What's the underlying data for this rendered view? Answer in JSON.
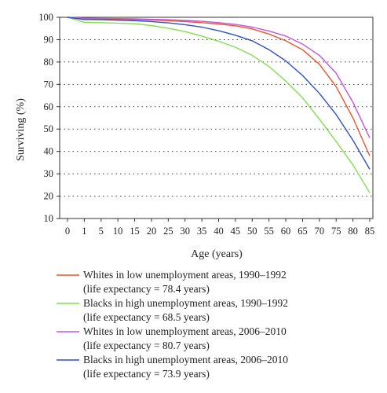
{
  "chart_data": {
    "type": "line",
    "ylabel": "Surviving (%)",
    "xlabel": "Age (years)",
    "xticks": [
      "0",
      "1",
      "5",
      "10",
      "15",
      "20",
      "25",
      "30",
      "35",
      "40",
      "45",
      "50",
      "55",
      "60",
      "65",
      "70",
      "75",
      "80",
      "85"
    ],
    "yticks": [
      10,
      20,
      30,
      40,
      50,
      60,
      70,
      80,
      90,
      100
    ],
    "ylim": [
      10,
      100
    ],
    "grid": "horizontal dotted",
    "legend_position": "bottom",
    "series": [
      {
        "name": "Whites in low unemployment areas, 1990–1992",
        "sub": "(life expectancy = 78.4 years)",
        "color": "#e8572b",
        "x": [
          0,
          1,
          5,
          10,
          15,
          20,
          25,
          30,
          35,
          40,
          45,
          50,
          55,
          60,
          65,
          70,
          75,
          80,
          85
        ],
        "values": [
          100,
          99.3,
          99.2,
          99.1,
          99.0,
          98.8,
          98.5,
          98.1,
          97.6,
          97.0,
          96.2,
          94.8,
          92.5,
          89.5,
          85.5,
          79.0,
          69.0,
          55.0,
          38.0
        ]
      },
      {
        "name": "Blacks in high unemployment areas, 1990–1992",
        "sub": "(life expectancy = 68.5 years)",
        "color": "#7fe04a",
        "x": [
          0,
          1,
          5,
          10,
          15,
          20,
          25,
          30,
          35,
          40,
          45,
          50,
          55,
          60,
          65,
          70,
          75,
          80,
          85
        ],
        "values": [
          100,
          97.8,
          97.6,
          97.4,
          97.1,
          96.3,
          95.1,
          93.6,
          91.6,
          89.3,
          86.6,
          83.0,
          78.0,
          71.5,
          64.0,
          54.5,
          44.5,
          34.0,
          21.5
        ]
      },
      {
        "name": "Whites in low unemployment areas, 2006–2010",
        "sub": "(life expectancy = 80.7 years)",
        "color": "#c455e0",
        "x": [
          0,
          1,
          5,
          10,
          15,
          20,
          25,
          30,
          35,
          40,
          45,
          50,
          55,
          60,
          65,
          70,
          75,
          80,
          85
        ],
        "values": [
          100,
          99.6,
          99.5,
          99.4,
          99.3,
          99.1,
          98.9,
          98.6,
          98.2,
          97.6,
          96.8,
          95.6,
          93.9,
          91.6,
          88.0,
          83.0,
          75.0,
          62.0,
          46.0
        ]
      },
      {
        "name": "Blacks in high unemployment areas, 2006–2010",
        "sub": "(life expectancy = 73.9 years)",
        "color": "#2f4fc4",
        "x": [
          0,
          1,
          5,
          10,
          15,
          20,
          25,
          30,
          35,
          40,
          45,
          50,
          55,
          60,
          65,
          70,
          75,
          80,
          85
        ],
        "values": [
          100,
          99.0,
          98.9,
          98.7,
          98.5,
          98.1,
          97.5,
          96.7,
          95.6,
          94.0,
          92.0,
          89.5,
          85.5,
          80.5,
          74.0,
          66.0,
          56.5,
          45.0,
          32.0
        ]
      }
    ]
  }
}
